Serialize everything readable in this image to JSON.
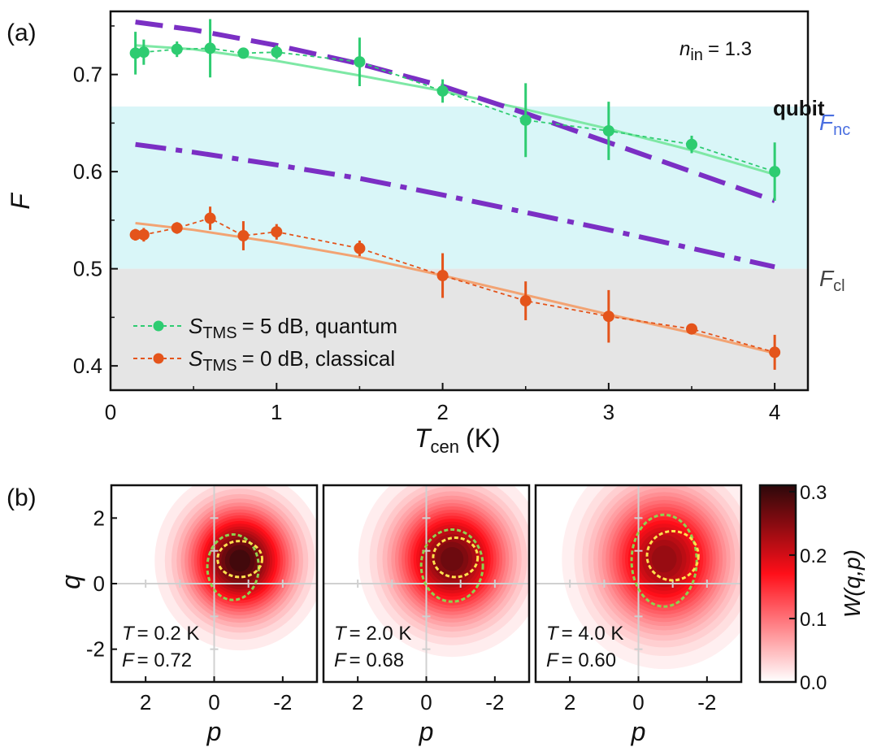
{
  "colors": {
    "quantum": "#2ecc71",
    "quantum_fit": "#7ee8a5",
    "classical": "#e4541b",
    "classical_fit": "#f2a373",
    "bound": "#7b2fc4",
    "qubit_band": "#d9f6f8",
    "classical_band": "#e5e5e5",
    "Fnc_label": "#4a6fe0",
    "axis": "#111111",
    "grid_b": "#d0d0d0",
    "contour_outer": "#8fd14f",
    "contour_inner": "#ffe14d"
  },
  "chart_data": [
    {
      "id": "a",
      "type": "line",
      "panel_label": "(a)",
      "xlabel_main": "T",
      "xlabel_sub": "cen",
      "xlabel_unit": "(K)",
      "ylabel": "F",
      "xlim": [
        0,
        4.2
      ],
      "ylim": [
        0.375,
        0.765
      ],
      "xticks": [
        0,
        1,
        2,
        3,
        4
      ],
      "xtick_labels": [
        "0",
        "1",
        "2",
        "3",
        "4"
      ],
      "yticks": [
        0.4,
        0.5,
        0.6,
        0.7
      ],
      "ytick_labels": [
        "0.4",
        "0.5",
        "0.6",
        "0.7"
      ],
      "annotation": {
        "main": "n",
        "sub": "in",
        "rest": "= 1.3"
      },
      "bands": [
        {
          "name": "qubit",
          "label": "qubit",
          "y0": 0.5,
          "y1": 0.667
        },
        {
          "name": "classical",
          "y0": 0.375,
          "y1": 0.5
        }
      ],
      "thresholds": [
        {
          "name": "F_nc",
          "main": "F",
          "sub": "nc",
          "y": 0.667
        },
        {
          "name": "F_cl",
          "main": "F",
          "sub": "cl",
          "y": 0.5
        }
      ],
      "series": [
        {
          "name": "quantum",
          "legend_main": "S",
          "legend_sub": "TMS",
          "legend_rest": "= 5 dB, quantum",
          "x": [
            0.15,
            0.2,
            0.4,
            0.6,
            0.8,
            1.0,
            1.5,
            2.0,
            2.5,
            3.0,
            3.5,
            4.0
          ],
          "y": [
            0.722,
            0.723,
            0.726,
            0.727,
            0.722,
            0.723,
            0.713,
            0.683,
            0.653,
            0.642,
            0.628,
            0.6
          ],
          "err": [
            0.022,
            0.013,
            0.008,
            0.03,
            0.005,
            0.007,
            0.025,
            0.012,
            0.038,
            0.03,
            0.009,
            0.03
          ]
        },
        {
          "name": "classical",
          "legend_main": "S",
          "legend_sub": "TMS",
          "legend_rest": "= 0 dB, classical",
          "x": [
            0.15,
            0.2,
            0.4,
            0.6,
            0.8,
            1.0,
            1.5,
            2.0,
            2.5,
            3.0,
            3.5,
            4.0
          ],
          "y": [
            0.535,
            0.535,
            0.542,
            0.552,
            0.534,
            0.538,
            0.521,
            0.493,
            0.467,
            0.451,
            0.438,
            0.414
          ],
          "err": [
            0.006,
            0.007,
            0.006,
            0.012,
            0.015,
            0.008,
            0.008,
            0.023,
            0.02,
            0.027,
            0.005,
            0.018
          ]
        }
      ],
      "fits": [
        {
          "name": "quantum-fit",
          "x": [
            0.15,
            0.5,
            1.0,
            1.5,
            2.0,
            2.5,
            3.0,
            3.5,
            4.0
          ],
          "y": [
            0.73,
            0.726,
            0.714,
            0.699,
            0.683,
            0.664,
            0.644,
            0.622,
            0.597
          ]
        },
        {
          "name": "classical-fit",
          "x": [
            0.15,
            0.5,
            1.0,
            1.5,
            2.0,
            2.5,
            3.0,
            3.5,
            4.0
          ],
          "y": [
            0.547,
            0.54,
            0.527,
            0.512,
            0.493,
            0.473,
            0.453,
            0.434,
            0.413
          ]
        }
      ],
      "bounds": [
        {
          "name": "bound-upper",
          "style": "dashed",
          "x": [
            0.15,
            0.5,
            1.0,
            1.5,
            2.0,
            2.5,
            3.0,
            3.5,
            4.0
          ],
          "y": [
            0.754,
            0.746,
            0.73,
            0.711,
            0.688,
            0.66,
            0.63,
            0.6,
            0.57
          ]
        },
        {
          "name": "bound-lower",
          "style": "dashdot",
          "x": [
            0.15,
            0.5,
            1.0,
            1.5,
            2.0,
            2.5,
            3.0,
            3.5,
            4.0
          ],
          "y": [
            0.628,
            0.62,
            0.607,
            0.593,
            0.576,
            0.558,
            0.54,
            0.521,
            0.502
          ]
        }
      ]
    },
    {
      "id": "b",
      "type": "heatmap",
      "panel_label": "(b)",
      "xlabel": "p",
      "ylabel": "q",
      "xlim": [
        3,
        -3
      ],
      "ylim": [
        -3,
        3
      ],
      "xticks": [
        2,
        0,
        -2
      ],
      "xtick_labels": [
        "2",
        "0",
        "-2"
      ],
      "yticks": [
        2,
        0,
        -2
      ],
      "ytick_labels": [
        "2",
        "0",
        "-2"
      ],
      "colorbar": {
        "label": "W(q,p)",
        "range": [
          0,
          0.31
        ],
        "ticks": [
          0.0,
          0.1,
          0.2,
          0.3
        ],
        "tick_labels": [
          "0.0",
          "0.1",
          "0.2",
          "0.3"
        ]
      },
      "panels": [
        {
          "name": "T-0.2K",
          "T_text": "= 0.2 K",
          "F_text": "= 0.72",
          "center_p": -0.75,
          "center_q": 0.7,
          "sigma_p": 1.0,
          "sigma_q": 1.1,
          "peak": 0.31,
          "outer": {
            "cp": -0.55,
            "cq": 0.5,
            "rp": 0.75,
            "rq": 1.0
          },
          "inner": {
            "cp": -0.75,
            "cq": 0.75,
            "rp": 0.65,
            "rq": 0.55
          }
        },
        {
          "name": "T-2.0K",
          "T_text": "= 2.0 K",
          "F_text": "= 0.68",
          "center_p": -0.75,
          "center_q": 0.75,
          "sigma_p": 1.1,
          "sigma_q": 1.2,
          "peak": 0.28,
          "outer": {
            "cp": -0.75,
            "cq": 0.55,
            "rp": 0.9,
            "rq": 1.1
          },
          "inner": {
            "cp": -0.85,
            "cq": 0.8,
            "rp": 0.65,
            "rq": 0.6
          }
        },
        {
          "name": "T-4.0K",
          "T_text": "= 4.0 K",
          "F_text": "= 0.60",
          "center_p": -0.75,
          "center_q": 0.75,
          "sigma_p": 1.2,
          "sigma_q": 1.35,
          "peak": 0.25,
          "outer": {
            "cp": -0.75,
            "cq": 0.7,
            "rp": 0.95,
            "rq": 1.4
          },
          "inner": {
            "cp": -1.0,
            "cq": 0.85,
            "rp": 0.75,
            "rq": 0.75
          }
        }
      ],
      "panel_T_main": "T",
      "panel_F_main": "F"
    }
  ]
}
